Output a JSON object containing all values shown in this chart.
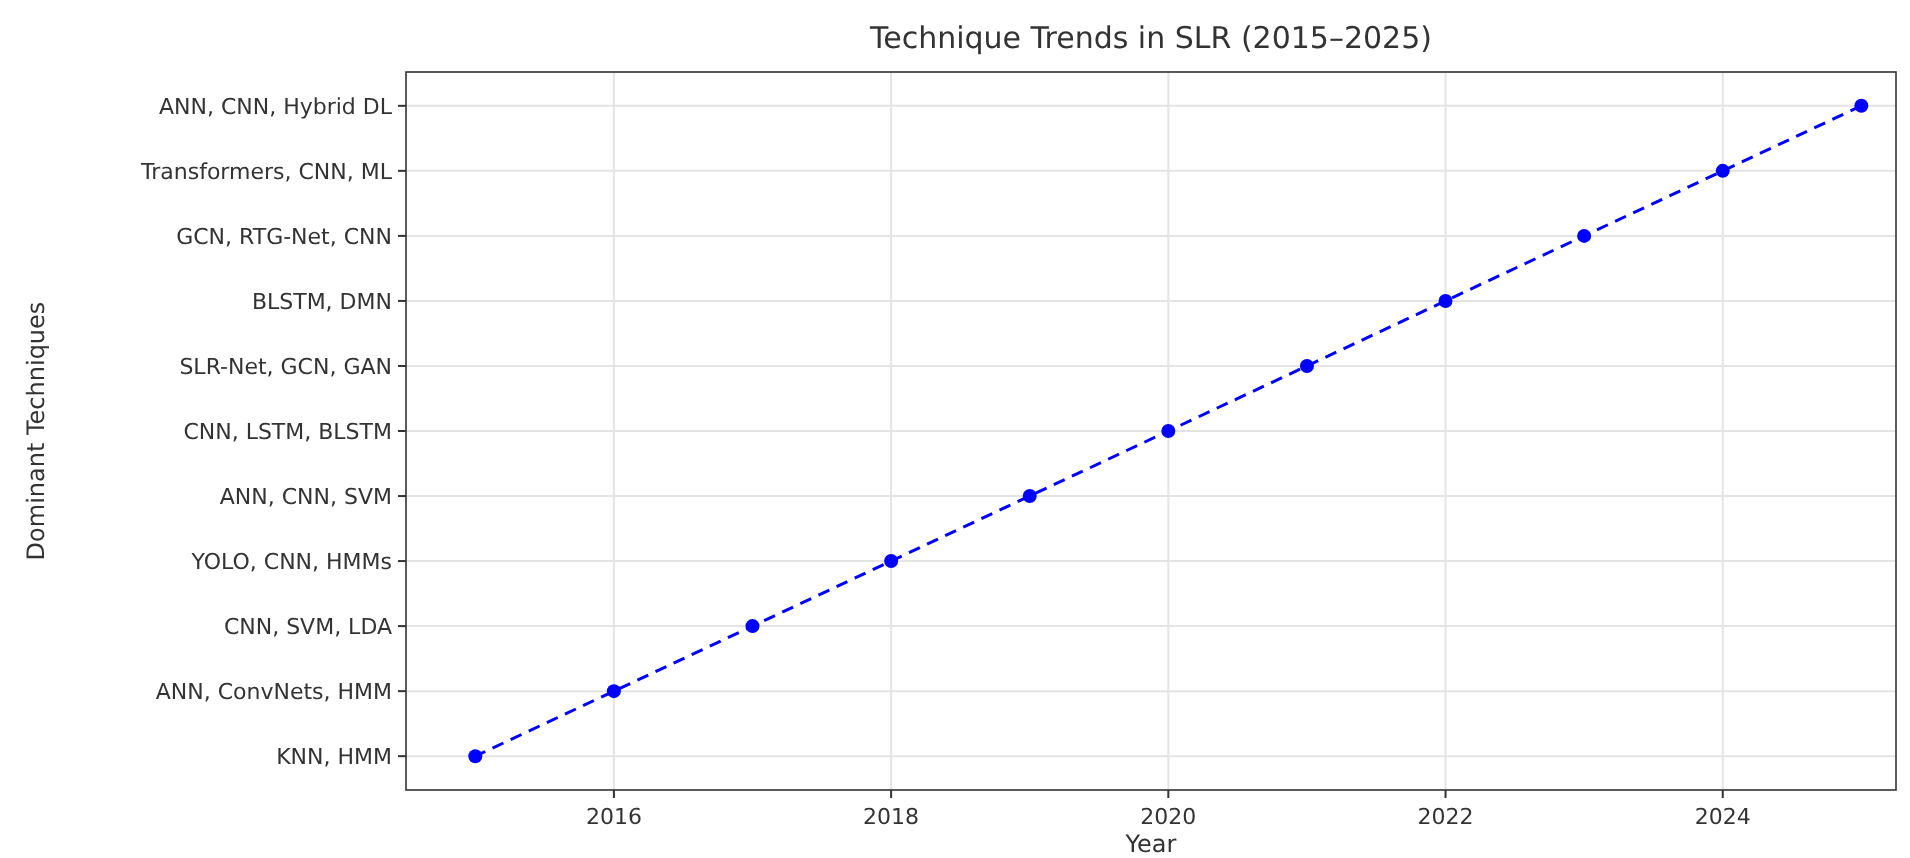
{
  "chart_data": {
    "type": "line",
    "orientation": "horizontal",
    "title": "Technique Trends in SLR (2015–2025)",
    "xlabel": "Year",
    "ylabel": "Dominant Techniques",
    "categories": [
      "ANN, CNN, Hybrid DL",
      "Transformers, CNN, ML",
      "GCN, RTG-Net, CNN",
      "BLSTM, DMN",
      "SLR-Net, GCN, GAN",
      "CNN, LSTM, BLSTM",
      "ANN, CNN, SVM",
      "YOLO, CNN, HMMs",
      "CNN, SVM, LDA",
      "ANN, ConvNets, HMM",
      "KNN, HMM"
    ],
    "series": [
      {
        "color": "#0000ff",
        "values": [
          2025,
          2024,
          2023,
          2022,
          2021,
          2020,
          2019,
          2018,
          2017,
          2016,
          2015
        ]
      }
    ],
    "xlim": [
      2014.5,
      2025.25
    ],
    "xticks": [
      2016,
      2018,
      2020,
      2022,
      2024
    ],
    "grid": true,
    "marker": "circle",
    "line_style": "dashed"
  }
}
